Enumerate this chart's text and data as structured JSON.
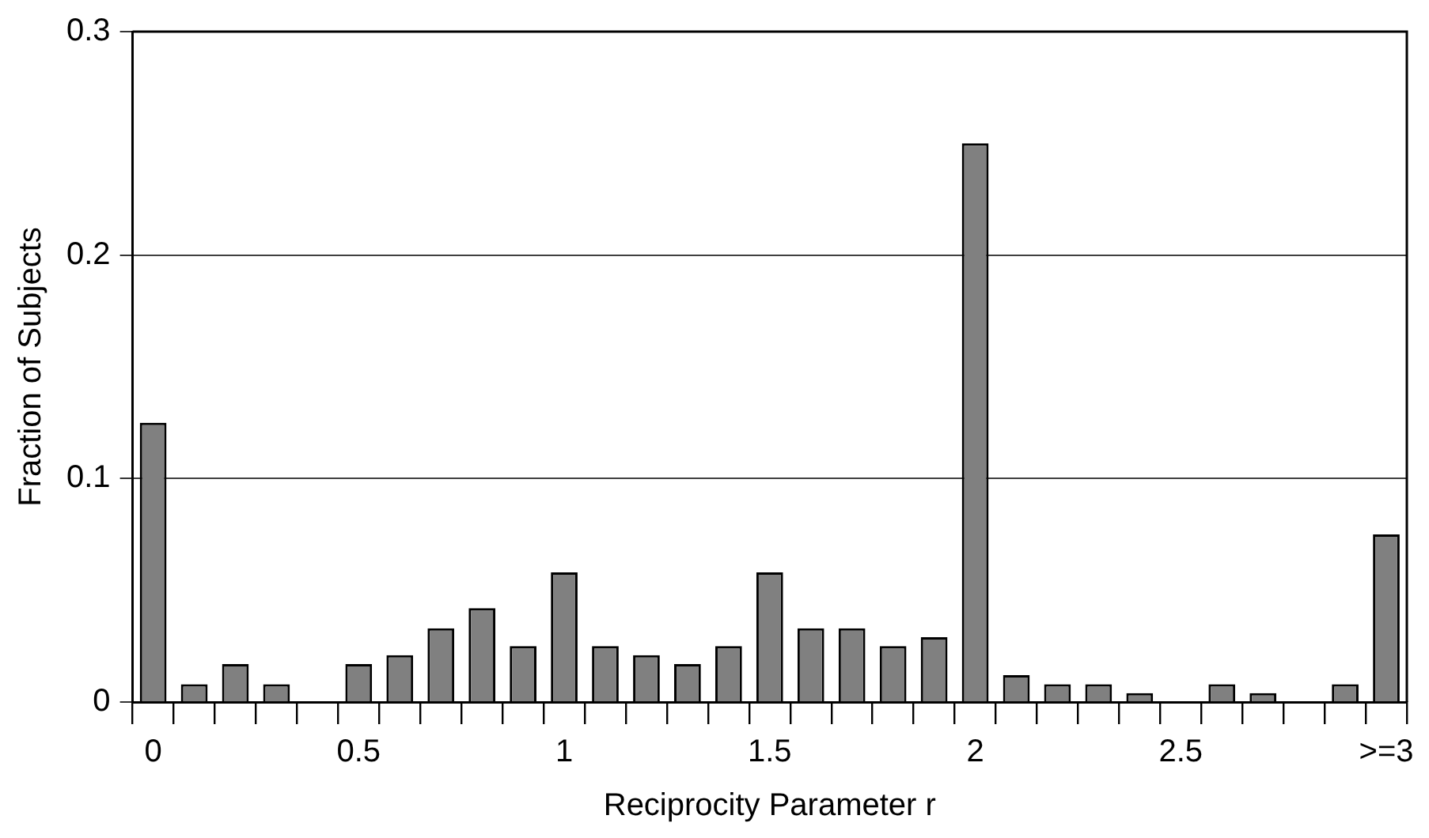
{
  "chart_data": {
    "type": "bar",
    "xlabel": "Reciprocity Parameter r",
    "ylabel": "Fraction of Subjects",
    "categories": [
      "0",
      null,
      null,
      null,
      null,
      "0.5",
      null,
      null,
      null,
      null,
      "1",
      null,
      null,
      null,
      null,
      "1.5",
      null,
      null,
      null,
      null,
      "2",
      null,
      null,
      null,
      null,
      "2.5",
      null,
      null,
      null,
      null,
      ">=3"
    ],
    "values": [
      0.125,
      0.008,
      0.017,
      0.008,
      0,
      0.017,
      0.021,
      0.033,
      0.042,
      0.025,
      0.058,
      0.025,
      0.021,
      0.017,
      0.025,
      0.058,
      0.033,
      0.033,
      0.025,
      0.029,
      0.25,
      0.012,
      0.008,
      0.008,
      0.004,
      0,
      0.008,
      0.004,
      0,
      0.008,
      0.075
    ],
    "color": "#808080",
    "ylim": [
      0,
      0.3
    ],
    "yticks": [
      0,
      0.1,
      0.2,
      0.3
    ],
    "grid": "y",
    "legend": false
  }
}
